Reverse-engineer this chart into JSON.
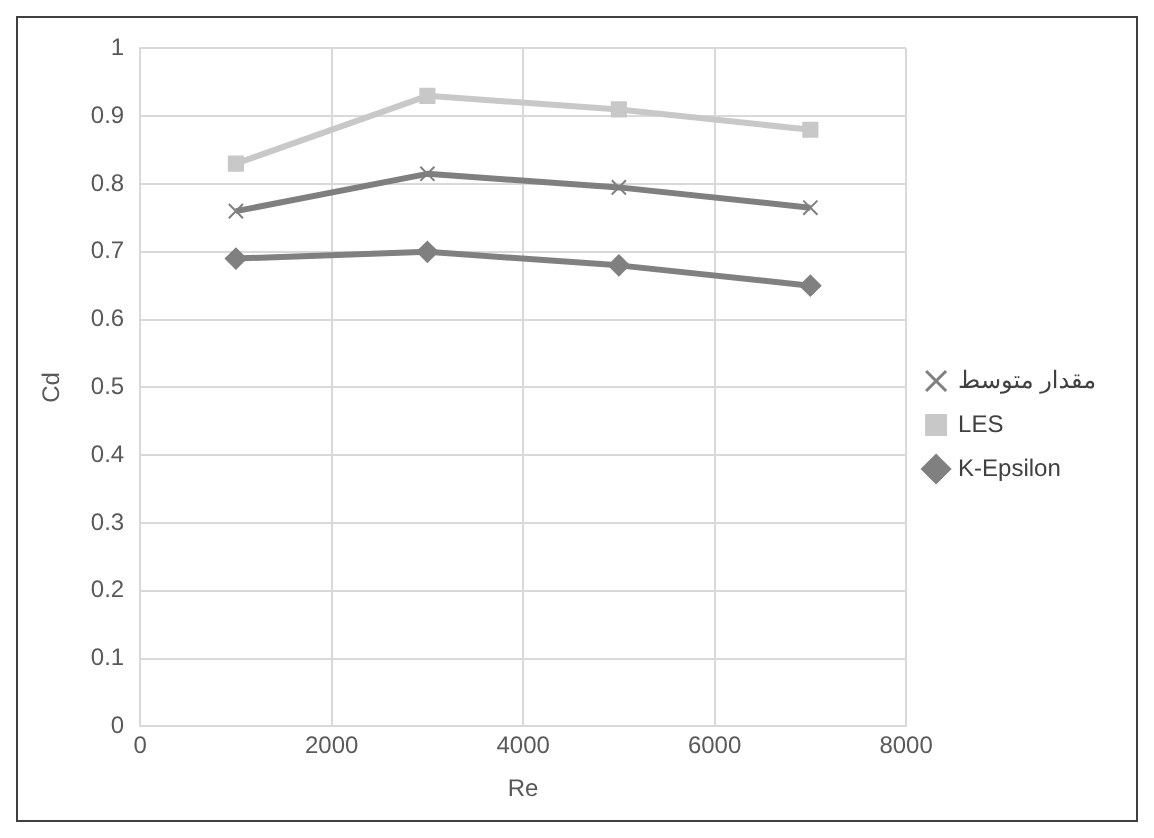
{
  "chart_data": {
    "type": "line",
    "xlabel": "Re",
    "ylabel": "Cd",
    "x": [
      1000,
      3000,
      5000,
      7000
    ],
    "series": [
      {
        "name": "مقدار متوسط",
        "color": "#7f7f7f",
        "marker": "cross",
        "values": [
          0.76,
          0.815,
          0.795,
          0.765
        ]
      },
      {
        "name": "LES",
        "color": "#c8c8c8",
        "marker": "square",
        "values": [
          0.83,
          0.93,
          0.91,
          0.88
        ]
      },
      {
        "name": "K-Epsilon",
        "color": "#808080",
        "marker": "diamond",
        "values": [
          0.69,
          0.7,
          0.68,
          0.65
        ]
      }
    ],
    "xlim": [
      0,
      8000
    ],
    "xticks": [
      0,
      2000,
      4000,
      6000,
      8000
    ],
    "ylim": [
      0,
      1
    ],
    "yticks": [
      0,
      0.1,
      0.2,
      0.3,
      0.4,
      0.5,
      0.6,
      0.7,
      0.8,
      0.9,
      1
    ],
    "grid": true,
    "legend": "right",
    "line_style": "solid"
  }
}
